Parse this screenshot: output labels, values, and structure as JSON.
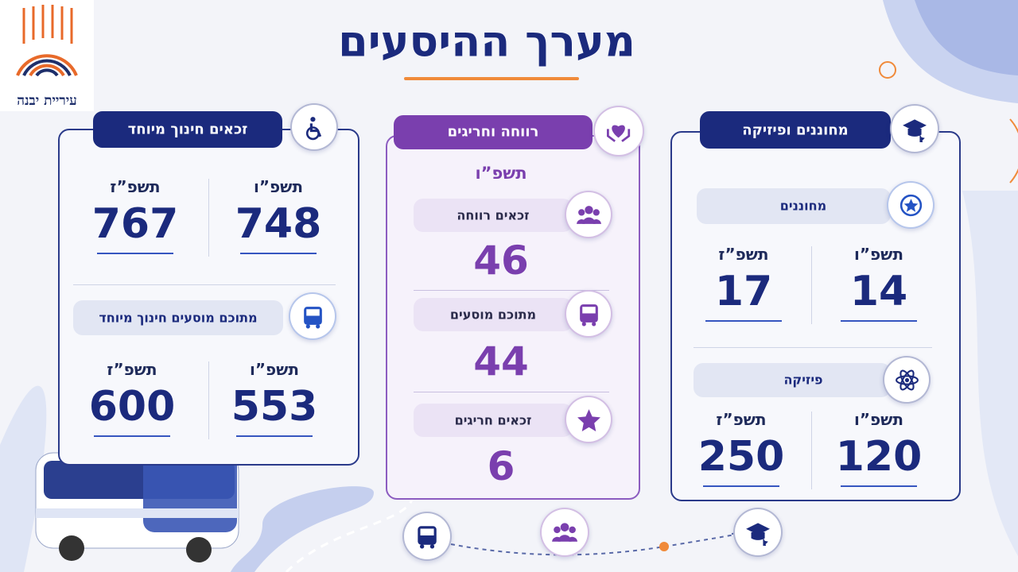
{
  "header": {
    "title": "מערך ההיסעים",
    "logo_text": "עיריית יבנה"
  },
  "special_education": {
    "title": "זכאים חינוך מיוחד",
    "eligible": {
      "year_a": "תשפ”ו",
      "value_a": 748,
      "year_b": "תשפ”ז",
      "value_b": 767
    },
    "transported": {
      "title": "מתוכם מוסעים חינוך מיוחד",
      "year_a": "תשפ”ו",
      "value_a": 553,
      "year_b": "תשפ”ז",
      "value_b": 600
    }
  },
  "welfare": {
    "title": "רווחה וחריגים",
    "year": "תשפ”ו",
    "items": [
      {
        "label": "זכאים רווחה",
        "value": 46
      },
      {
        "label": "מתוכם מוסעים",
        "value": 44
      },
      {
        "label": "זכאים חריגים",
        "value": 6
      }
    ]
  },
  "gifted_physics": {
    "title": "מחוננים ופיזיקה",
    "gifted": {
      "title": "מחוננים",
      "year_a": "תשפ”ו",
      "value_a": 14,
      "year_b": "תשפ”ז",
      "value_b": 17
    },
    "physics": {
      "title": "פיזיקה",
      "year_a": "תשפ”ו",
      "value_a": 120,
      "year_b": "תשפ”ז",
      "value_b": 250
    }
  }
}
